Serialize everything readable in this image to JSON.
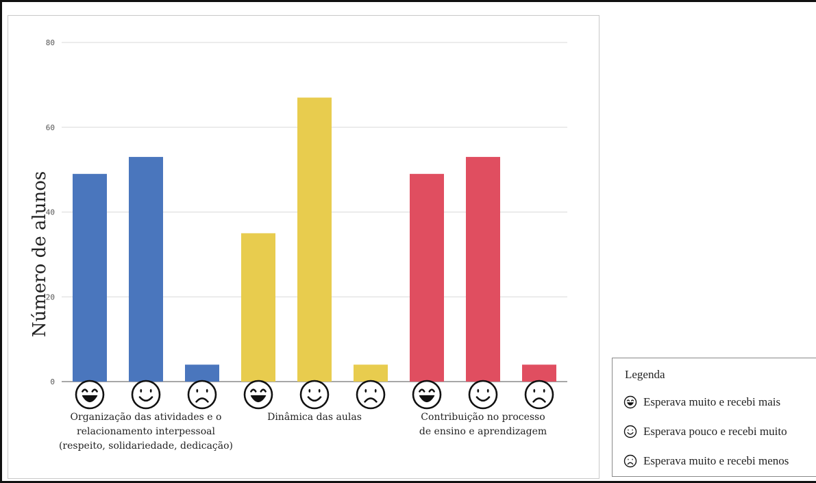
{
  "chart_data": {
    "type": "bar",
    "title": "",
    "xlabel": "",
    "ylabel": "Número de alunos",
    "ylim": [
      0,
      80
    ],
    "yticks": [
      "0",
      "20",
      "40",
      "60",
      "80"
    ],
    "grid": true,
    "groups": [
      {
        "label": "Organização das atividades e o\nrelacionamento interpessoal\n(respeito, solidariedade, dedicação)",
        "color": "#4a76bd",
        "values": [
          49,
          53,
          4
        ]
      },
      {
        "label": "Dinâmica das aulas",
        "color": "#e8cc4e",
        "values": [
          35,
          67,
          4
        ]
      },
      {
        "label": "Contribuição no processo\nde ensino e aprendizagem",
        "color": "#e04e60",
        "values": [
          49,
          53,
          4
        ]
      }
    ],
    "bar_icons": [
      "laughing-face-icon",
      "smiling-face-icon",
      "frowning-face-icon"
    ]
  },
  "legend": {
    "title": "Legenda",
    "placement": "bottom-right",
    "items": [
      {
        "icon": "laughing-face-icon",
        "label": "Esperava muito e recebi mais"
      },
      {
        "icon": "smiling-face-icon",
        "label": "Esperava pouco e recebi muito"
      },
      {
        "icon": "frowning-face-icon",
        "label": "Esperava muito e recebi menos"
      }
    ]
  }
}
